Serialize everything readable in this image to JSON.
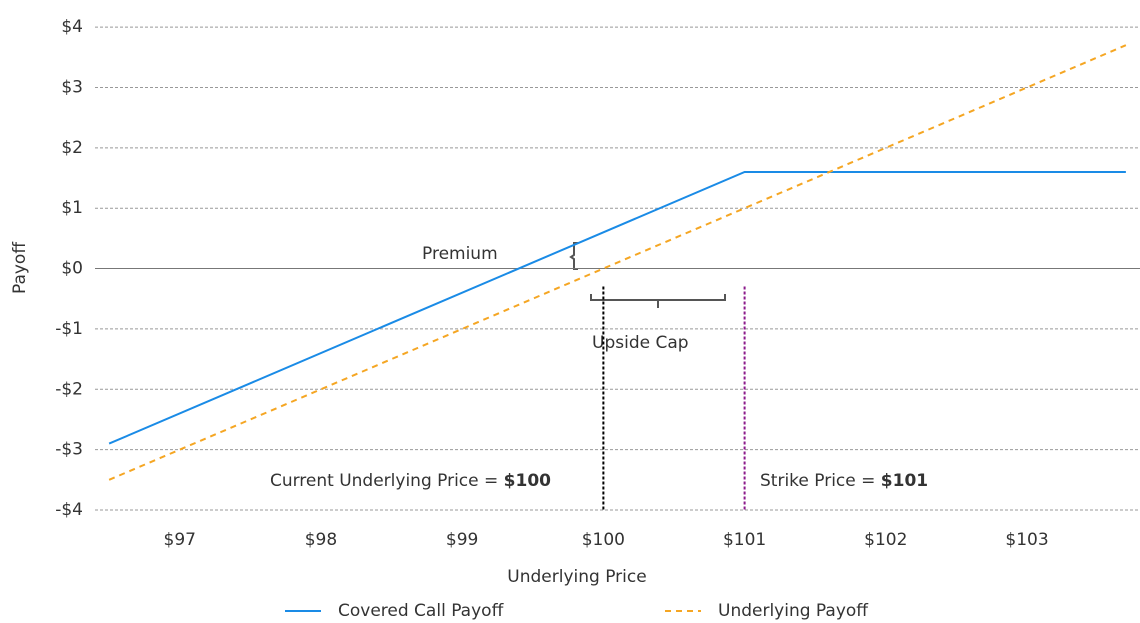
{
  "chart_data": {
    "type": "line",
    "x_label": "Underlying Price",
    "y_label": "Payoff",
    "series": [
      {
        "name": "Covered Call Payoff",
        "color": "#1a8be6",
        "dash": false,
        "x": [
          96.5,
          101,
          103.7
        ],
        "values": [
          -2.9,
          1.6,
          1.6
        ]
      },
      {
        "name": "Underlying Payoff",
        "color": "#f5a623",
        "dash": true,
        "x": [
          96.5,
          103.7
        ],
        "values": [
          -3.5,
          3.7
        ]
      }
    ],
    "xlim": [
      96.4,
      103.8
    ],
    "ylim": [
      -4,
      4.3
    ],
    "xticks": [
      {
        "value": 97,
        "label": "$97"
      },
      {
        "value": 98,
        "label": "$98"
      },
      {
        "value": 99,
        "label": "$99"
      },
      {
        "value": 100,
        "label": "$100"
      },
      {
        "value": 101,
        "label": "$101"
      },
      {
        "value": 102,
        "label": "$102"
      },
      {
        "value": 103,
        "label": "$103"
      }
    ],
    "yticks": [
      {
        "value": -4,
        "label": "-$4"
      },
      {
        "value": -3,
        "label": "-$3"
      },
      {
        "value": -2,
        "label": "-$2"
      },
      {
        "value": -1,
        "label": "-$1"
      },
      {
        "value": 0,
        "label": "$0"
      },
      {
        "value": 1,
        "label": "$1"
      },
      {
        "value": 2,
        "label": "$2"
      },
      {
        "value": 3,
        "label": "$3"
      },
      {
        "value": 4,
        "label": "$4"
      }
    ],
    "grid": true,
    "vlines": [
      {
        "x": 100,
        "color": "#000000"
      },
      {
        "x": 101,
        "color": "#8b1a8b"
      }
    ],
    "annotations": {
      "premium": "Premium",
      "upside_cap": "Upside Cap",
      "current_prefix": "Current Underlying Price = ",
      "current_value": "$100",
      "strike_prefix": "Strike Price = ",
      "strike_value": "$101"
    }
  }
}
